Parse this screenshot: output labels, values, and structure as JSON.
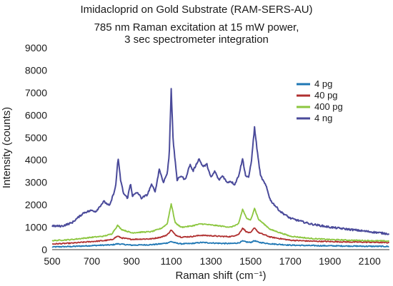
{
  "chart_data": {
    "type": "line",
    "title": "Imidacloprid on Gold Substrate (RAM-SERS-AU)",
    "subtitle_lines": [
      "785 nm Raman excitation at 15 mW power,",
      "3 sec spectrometer integration"
    ],
    "xlabel": "Raman shift (cm⁻¹)",
    "ylabel": "Intensity (counts)",
    "xlim": [
      500,
      2200
    ],
    "ylim": [
      0,
      9000
    ],
    "x_ticks": [
      500,
      700,
      900,
      1100,
      1300,
      1500,
      1700,
      1900,
      2100
    ],
    "y_ticks": [
      0,
      1000,
      2000,
      3000,
      4000,
      5000,
      6000,
      7000,
      8000,
      9000
    ],
    "grid": false,
    "legend_position": "top-right",
    "series": [
      {
        "name": "4 pg",
        "color": "#1f77b4",
        "points": [
          [
            500,
            120
          ],
          [
            600,
            140
          ],
          [
            700,
            180
          ],
          [
            760,
            200
          ],
          [
            800,
            210
          ],
          [
            830,
            260
          ],
          [
            850,
            240
          ],
          [
            900,
            200
          ],
          [
            950,
            210
          ],
          [
            1000,
            220
          ],
          [
            1050,
            260
          ],
          [
            1080,
            300
          ],
          [
            1100,
            360
          ],
          [
            1120,
            300
          ],
          [
            1150,
            260
          ],
          [
            1200,
            270
          ],
          [
            1250,
            320
          ],
          [
            1300,
            300
          ],
          [
            1350,
            280
          ],
          [
            1400,
            270
          ],
          [
            1440,
            300
          ],
          [
            1460,
            380
          ],
          [
            1480,
            340
          ],
          [
            1500,
            320
          ],
          [
            1520,
            400
          ],
          [
            1540,
            330
          ],
          [
            1600,
            260
          ],
          [
            1700,
            200
          ],
          [
            1800,
            180
          ],
          [
            1900,
            170
          ],
          [
            2000,
            160
          ],
          [
            2100,
            150
          ],
          [
            2200,
            140
          ]
        ]
      },
      {
        "name": "40 pg",
        "color": "#b03030",
        "points": [
          [
            500,
            250
          ],
          [
            600,
            290
          ],
          [
            700,
            360
          ],
          [
            760,
            400
          ],
          [
            800,
            440
          ],
          [
            830,
            600
          ],
          [
            850,
            520
          ],
          [
            900,
            460
          ],
          [
            950,
            470
          ],
          [
            1000,
            480
          ],
          [
            1050,
            560
          ],
          [
            1080,
            660
          ],
          [
            1100,
            880
          ],
          [
            1120,
            660
          ],
          [
            1150,
            560
          ],
          [
            1200,
            580
          ],
          [
            1250,
            640
          ],
          [
            1300,
            620
          ],
          [
            1350,
            590
          ],
          [
            1400,
            580
          ],
          [
            1440,
            680
          ],
          [
            1460,
            960
          ],
          [
            1480,
            790
          ],
          [
            1500,
            740
          ],
          [
            1520,
            980
          ],
          [
            1540,
            760
          ],
          [
            1600,
            560
          ],
          [
            1700,
            420
          ],
          [
            1800,
            380
          ],
          [
            1900,
            360
          ],
          [
            2000,
            340
          ],
          [
            2100,
            330
          ],
          [
            2200,
            310
          ]
        ]
      },
      {
        "name": "400 pg",
        "color": "#8cc63f",
        "points": [
          [
            500,
            400
          ],
          [
            600,
            450
          ],
          [
            700,
            550
          ],
          [
            760,
            600
          ],
          [
            800,
            700
          ],
          [
            830,
            1080
          ],
          [
            850,
            900
          ],
          [
            900,
            750
          ],
          [
            950,
            780
          ],
          [
            1000,
            800
          ],
          [
            1050,
            950
          ],
          [
            1080,
            1150
          ],
          [
            1100,
            2050
          ],
          [
            1120,
            1200
          ],
          [
            1150,
            1000
          ],
          [
            1200,
            1050
          ],
          [
            1250,
            1150
          ],
          [
            1300,
            1100
          ],
          [
            1350,
            1050
          ],
          [
            1400,
            1000
          ],
          [
            1440,
            1150
          ],
          [
            1460,
            1800
          ],
          [
            1480,
            1400
          ],
          [
            1500,
            1300
          ],
          [
            1520,
            1850
          ],
          [
            1540,
            1350
          ],
          [
            1600,
            900
          ],
          [
            1700,
            600
          ],
          [
            1800,
            500
          ],
          [
            1900,
            450
          ],
          [
            2000,
            420
          ],
          [
            2100,
            400
          ],
          [
            2200,
            380
          ]
        ]
      },
      {
        "name": "4 ng",
        "color": "#4a4a9a",
        "points": [
          [
            500,
            1050
          ],
          [
            550,
            1050
          ],
          [
            600,
            1200
          ],
          [
            640,
            1500
          ],
          [
            660,
            1650
          ],
          [
            700,
            1750
          ],
          [
            720,
            1700
          ],
          [
            760,
            2150
          ],
          [
            790,
            1950
          ],
          [
            820,
            2800
          ],
          [
            832,
            4100
          ],
          [
            845,
            3100
          ],
          [
            860,
            2500
          ],
          [
            880,
            2300
          ],
          [
            895,
            2950
          ],
          [
            905,
            2400
          ],
          [
            930,
            2550
          ],
          [
            950,
            2300
          ],
          [
            980,
            2450
          ],
          [
            1000,
            2900
          ],
          [
            1020,
            2600
          ],
          [
            1040,
            3600
          ],
          [
            1060,
            3000
          ],
          [
            1080,
            3400
          ],
          [
            1090,
            4200
          ],
          [
            1100,
            7200
          ],
          [
            1110,
            4800
          ],
          [
            1130,
            3100
          ],
          [
            1150,
            3300
          ],
          [
            1170,
            3100
          ],
          [
            1195,
            3800
          ],
          [
            1210,
            3500
          ],
          [
            1240,
            4050
          ],
          [
            1260,
            3700
          ],
          [
            1280,
            3800
          ],
          [
            1300,
            3200
          ],
          [
            1320,
            3500
          ],
          [
            1340,
            3100
          ],
          [
            1360,
            3300
          ],
          [
            1380,
            3000
          ],
          [
            1400,
            3050
          ],
          [
            1420,
            2900
          ],
          [
            1440,
            3300
          ],
          [
            1460,
            4050
          ],
          [
            1475,
            3300
          ],
          [
            1490,
            3200
          ],
          [
            1505,
            4000
          ],
          [
            1520,
            5450
          ],
          [
            1535,
            4300
          ],
          [
            1550,
            3300
          ],
          [
            1580,
            2800
          ],
          [
            1600,
            2200
          ],
          [
            1650,
            1700
          ],
          [
            1700,
            1400
          ],
          [
            1800,
            1150
          ],
          [
            1900,
            1000
          ],
          [
            2000,
            900
          ],
          [
            2100,
            800
          ],
          [
            2200,
            700
          ]
        ]
      }
    ]
  }
}
